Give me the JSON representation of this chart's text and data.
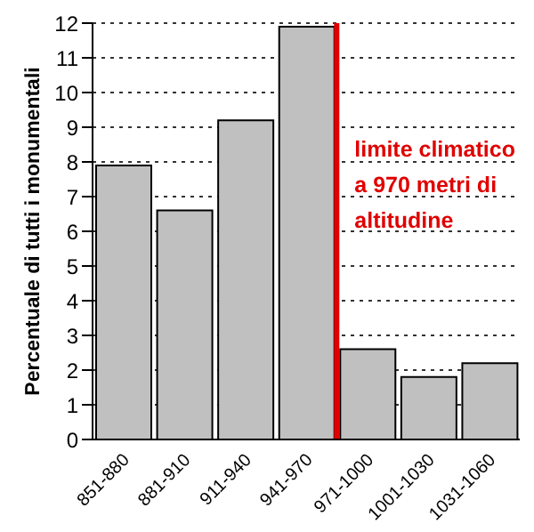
{
  "chart_data": {
    "type": "bar",
    "ylabel": "Percentuale di tutti i monumentali",
    "categories": [
      "851-880",
      "881-910",
      "911-940",
      "941-970",
      "971-1000",
      "1001-1030",
      "1031-1060"
    ],
    "values": [
      7.9,
      6.6,
      9.2,
      11.9,
      2.6,
      1.8,
      2.2
    ],
    "color": "#c0c0c0",
    "ylim": [
      0,
      12
    ],
    "yticks": [
      0,
      1,
      2,
      3,
      4,
      5,
      6,
      7,
      8,
      9,
      10,
      11,
      12
    ],
    "grid": "y",
    "ref_lines": [
      {
        "axis": "x",
        "value": "971-1000",
        "label": "limite climatico a 970 metri di altitudine",
        "color": "#e00000"
      }
    ]
  }
}
